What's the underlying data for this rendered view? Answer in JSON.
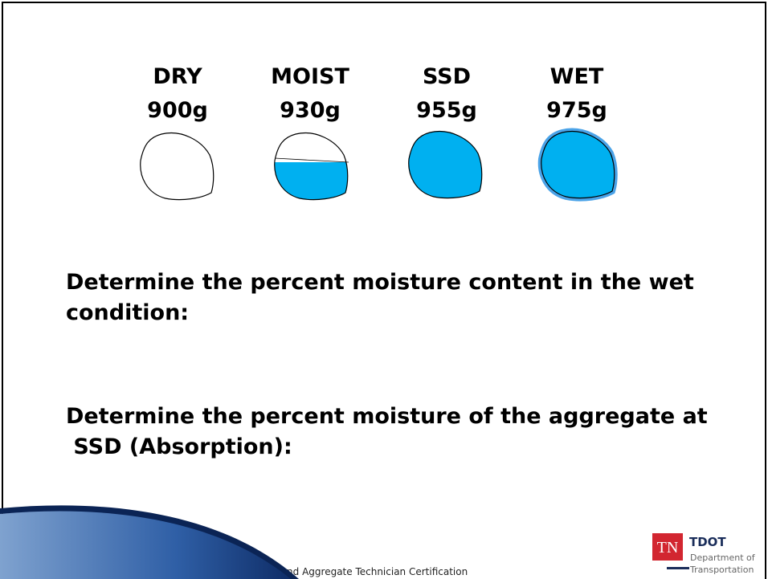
{
  "slide": {
    "states": [
      {
        "label": "DRY",
        "weight": "900g"
      },
      {
        "label": "MOIST",
        "weight": "930g"
      },
      {
        "label": "SSD",
        "weight": "955g"
      },
      {
        "label": "WET",
        "weight": "975g"
      }
    ],
    "questions": [
      [
        "Determine the percent moisture content in the wet",
        "condition:"
      ],
      [
        "Determine the percent moisture of the aggregate at",
        " SSD (Absorption):"
      ]
    ],
    "footer": "Soils and Aggregate Technician Certification",
    "logo": {
      "badge": "TN",
      "name": "TDOT",
      "line1": "Department of",
      "line2": "Transportation"
    }
  }
}
